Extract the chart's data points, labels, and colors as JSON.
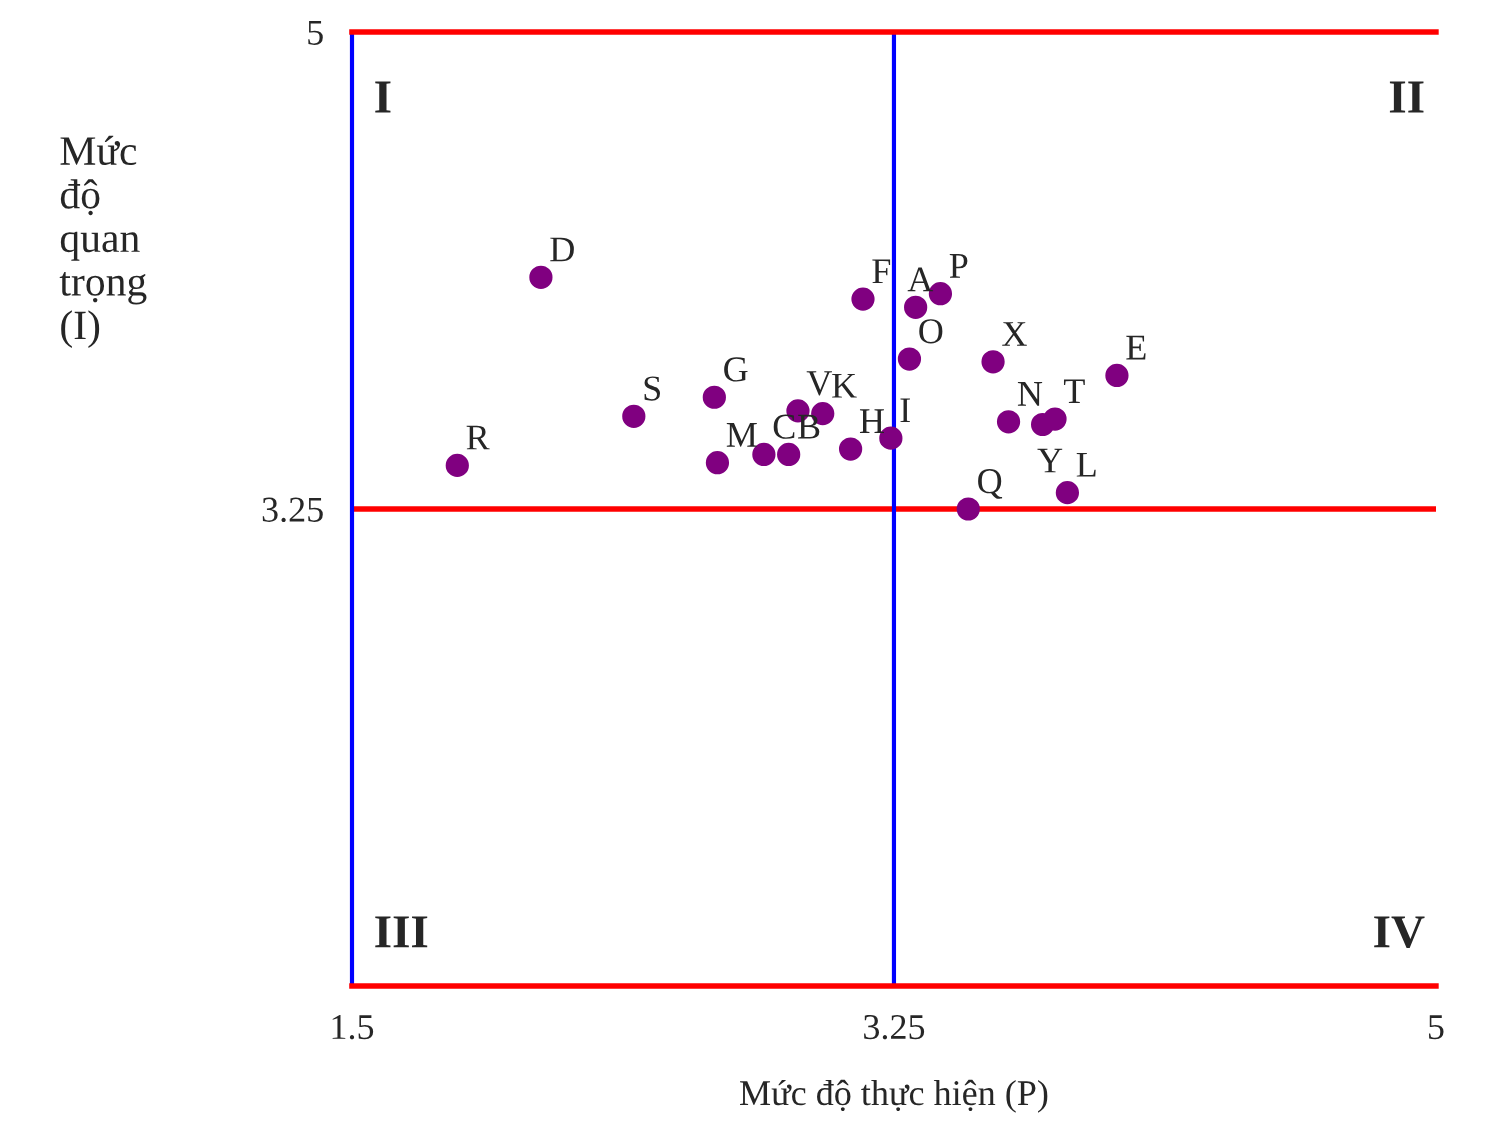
{
  "chart_data": {
    "type": "scatter",
    "xlabel": "Mức độ thực hiện (P)",
    "ylabel": "Mức độ quan trọng (I)",
    "xlim": [
      1.5,
      5
    ],
    "ylim": [
      1.5,
      5
    ],
    "xticks": [
      1.5,
      3.25,
      5
    ],
    "yticks": [
      3.25,
      5
    ],
    "grid": false,
    "legend": false,
    "marker": "circle",
    "annotations": [
      "I",
      "II",
      "III",
      "IV"
    ],
    "ref_lines": [
      {
        "axis": "y",
        "value": 3.25,
        "color": "#ff0000"
      },
      {
        "axis": "x",
        "value": 3.25,
        "color": "#0000ff"
      }
    ],
    "series": [
      {
        "name": "D",
        "color": "#800080",
        "x": [
          2.11
        ],
        "values": [
          4.1
        ]
      },
      {
        "name": "F",
        "color": "#800080",
        "x": [
          3.15
        ],
        "values": [
          4.02
        ]
      },
      {
        "name": "A",
        "color": "#800080",
        "x": [
          3.32
        ],
        "values": [
          3.99
        ]
      },
      {
        "name": "P",
        "color": "#800080",
        "x": [
          3.4
        ],
        "values": [
          4.04
        ]
      },
      {
        "name": "O",
        "color": "#800080",
        "x": [
          3.3
        ],
        "values": [
          3.8
        ]
      },
      {
        "name": "X",
        "color": "#800080",
        "x": [
          3.57
        ],
        "values": [
          3.79
        ]
      },
      {
        "name": "E",
        "color": "#800080",
        "x": [
          3.97
        ],
        "values": [
          3.74
        ]
      },
      {
        "name": "S",
        "color": "#800080",
        "x": [
          2.41
        ],
        "values": [
          3.59
        ]
      },
      {
        "name": "G",
        "color": "#800080",
        "x": [
          2.67
        ],
        "values": [
          3.66
        ]
      },
      {
        "name": "V",
        "color": "#800080",
        "x": [
          2.94
        ],
        "values": [
          3.61
        ]
      },
      {
        "name": "K",
        "color": "#800080",
        "x": [
          3.02
        ],
        "values": [
          3.6
        ]
      },
      {
        "name": "N",
        "color": "#800080",
        "x": [
          3.62
        ],
        "values": [
          3.57
        ]
      },
      {
        "name": "T",
        "color": "#800080",
        "x": [
          3.77
        ],
        "values": [
          3.58
        ]
      },
      {
        "name": "Y",
        "color": "#800080",
        "x": [
          3.73
        ],
        "values": [
          3.56
        ]
      },
      {
        "name": "I",
        "color": "#800080",
        "x": [
          3.24
        ],
        "values": [
          3.51
        ]
      },
      {
        "name": "H",
        "color": "#800080",
        "x": [
          3.11
        ],
        "values": [
          3.47
        ]
      },
      {
        "name": "C",
        "color": "#800080",
        "x": [
          2.83
        ],
        "values": [
          3.45
        ]
      },
      {
        "name": "B",
        "color": "#800080",
        "x": [
          2.91
        ],
        "values": [
          3.45
        ]
      },
      {
        "name": "M",
        "color": "#800080",
        "x": [
          2.68
        ],
        "values": [
          3.42
        ]
      },
      {
        "name": "R",
        "color": "#800080",
        "x": [
          1.84
        ],
        "values": [
          3.41
        ]
      },
      {
        "name": "L",
        "color": "#800080",
        "x": [
          3.81
        ],
        "values": [
          3.31
        ]
      },
      {
        "name": "Q",
        "color": "#800080",
        "x": [
          3.49
        ],
        "values": [
          3.25
        ]
      }
    ]
  }
}
